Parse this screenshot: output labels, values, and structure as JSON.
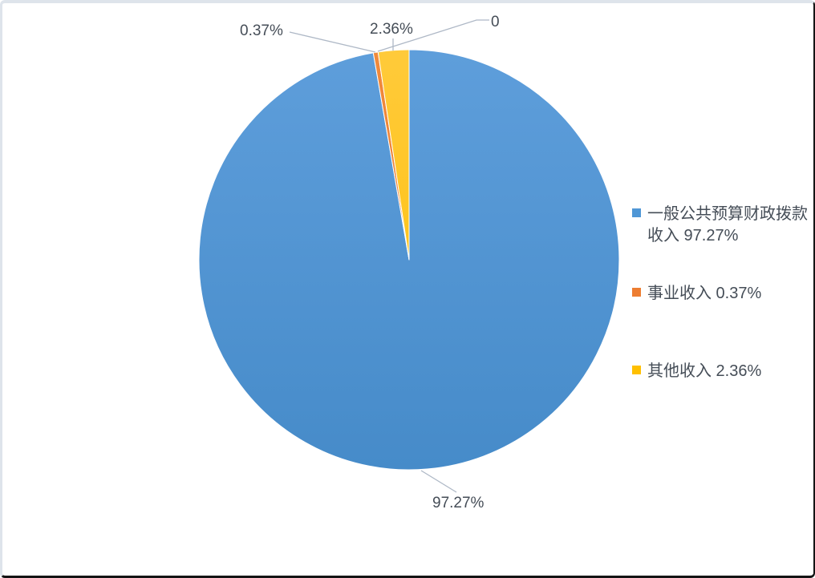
{
  "chart_data": {
    "type": "pie",
    "title": "",
    "legend_position": "right",
    "text_color": "#454D57",
    "leader_line_color": "#AEB8C6",
    "slice_border_color": "#ffffff",
    "slices": [
      {
        "name": "一般公共预算财政拨款收入",
        "pct": 97.27,
        "color_top": "#5E9EDB",
        "color_bottom": "#468BC9",
        "data_label": "97.27%"
      },
      {
        "name": "事业收入",
        "pct": 0.37,
        "color_top": "#F08A3C",
        "color_bottom": "#EB762B",
        "data_label": "0.37%"
      },
      {
        "name": "",
        "pct": 0,
        "color_top": "",
        "color_bottom": "",
        "data_label": "0"
      },
      {
        "name": "其他收入",
        "pct": 2.36,
        "color_top": "#FFCA3A",
        "color_bottom": "#FEBF01",
        "data_label": "2.36%"
      }
    ],
    "legend": [
      {
        "color": "#4F97D6",
        "text": "一般公共预算财政拨款收入 97.27%"
      },
      {
        "color": "#ED7D31",
        "text": "事业收入 0.37%"
      },
      {
        "color": "#FFC000",
        "text": "其他收入 2.36%"
      }
    ]
  }
}
